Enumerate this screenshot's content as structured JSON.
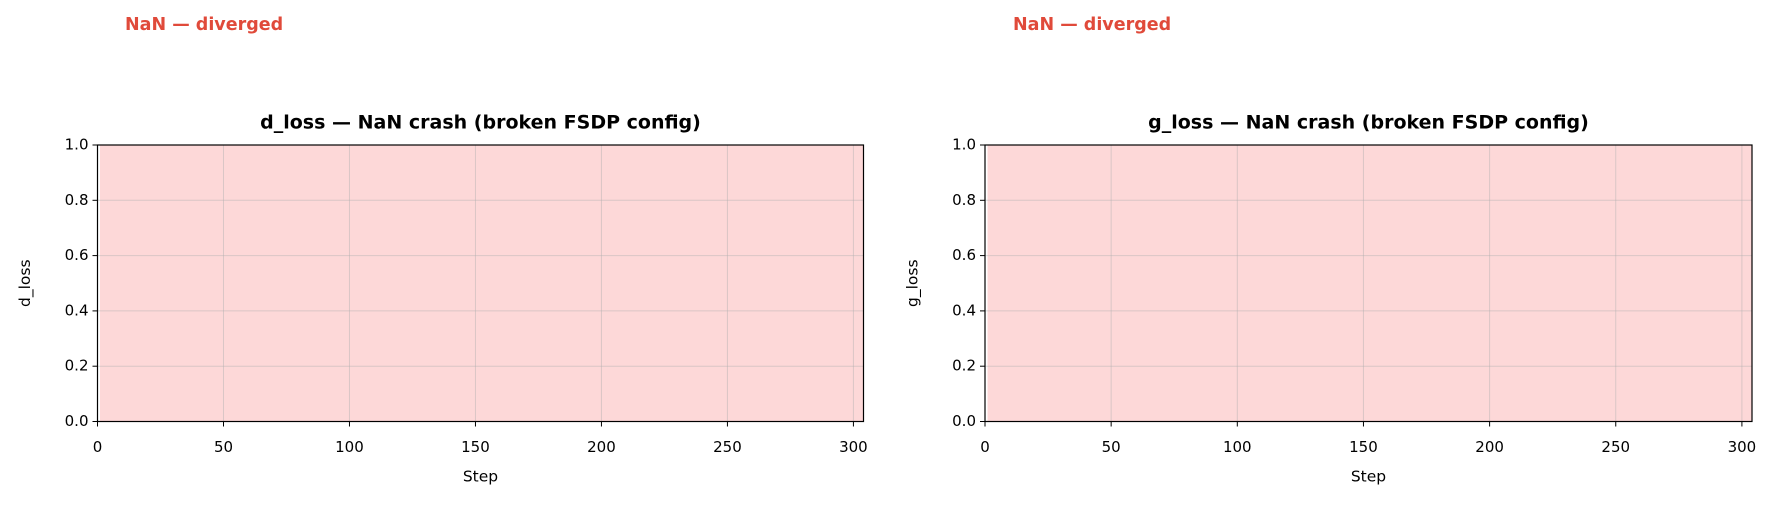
{
  "chart_data": [
    {
      "type": "line",
      "title": "d_loss — NaN crash (broken FSDP config)",
      "xlabel": "Step",
      "ylabel": "d_loss",
      "annotation": "NaN — diverged",
      "xlim": [
        0,
        304
      ],
      "ylim": [
        0,
        1
      ],
      "xticks": [
        0,
        50,
        100,
        150,
        200,
        250,
        300
      ],
      "yticks": [
        {
          "value": 0,
          "label": "0.0"
        },
        {
          "value": 0.2,
          "label": "0.2"
        },
        {
          "value": 0.4,
          "label": "0.4"
        },
        {
          "value": 0.6,
          "label": "0.6"
        },
        {
          "value": 0.8,
          "label": "0.8"
        },
        {
          "value": 1,
          "label": "1.0"
        }
      ],
      "span": {
        "xmin": 1,
        "xmax": 304,
        "color": "#fdd8d8"
      },
      "grid": true
    },
    {
      "type": "line",
      "title": "g_loss — NaN crash (broken FSDP config)",
      "xlabel": "Step",
      "ylabel": "g_loss",
      "annotation": "NaN — diverged",
      "xlim": [
        0,
        304
      ],
      "ylim": [
        0,
        1
      ],
      "xticks": [
        0,
        50,
        100,
        150,
        200,
        250,
        300
      ],
      "yticks": [
        {
          "value": 0,
          "label": "0.0"
        },
        {
          "value": 0.2,
          "label": "0.2"
        },
        {
          "value": 0.4,
          "label": "0.4"
        },
        {
          "value": 0.6,
          "label": "0.6"
        },
        {
          "value": 0.8,
          "label": "0.8"
        },
        {
          "value": 1,
          "label": "1.0"
        }
      ],
      "span": {
        "xmin": 1,
        "xmax": 304,
        "color": "#fdd8d8"
      },
      "grid": true
    }
  ]
}
